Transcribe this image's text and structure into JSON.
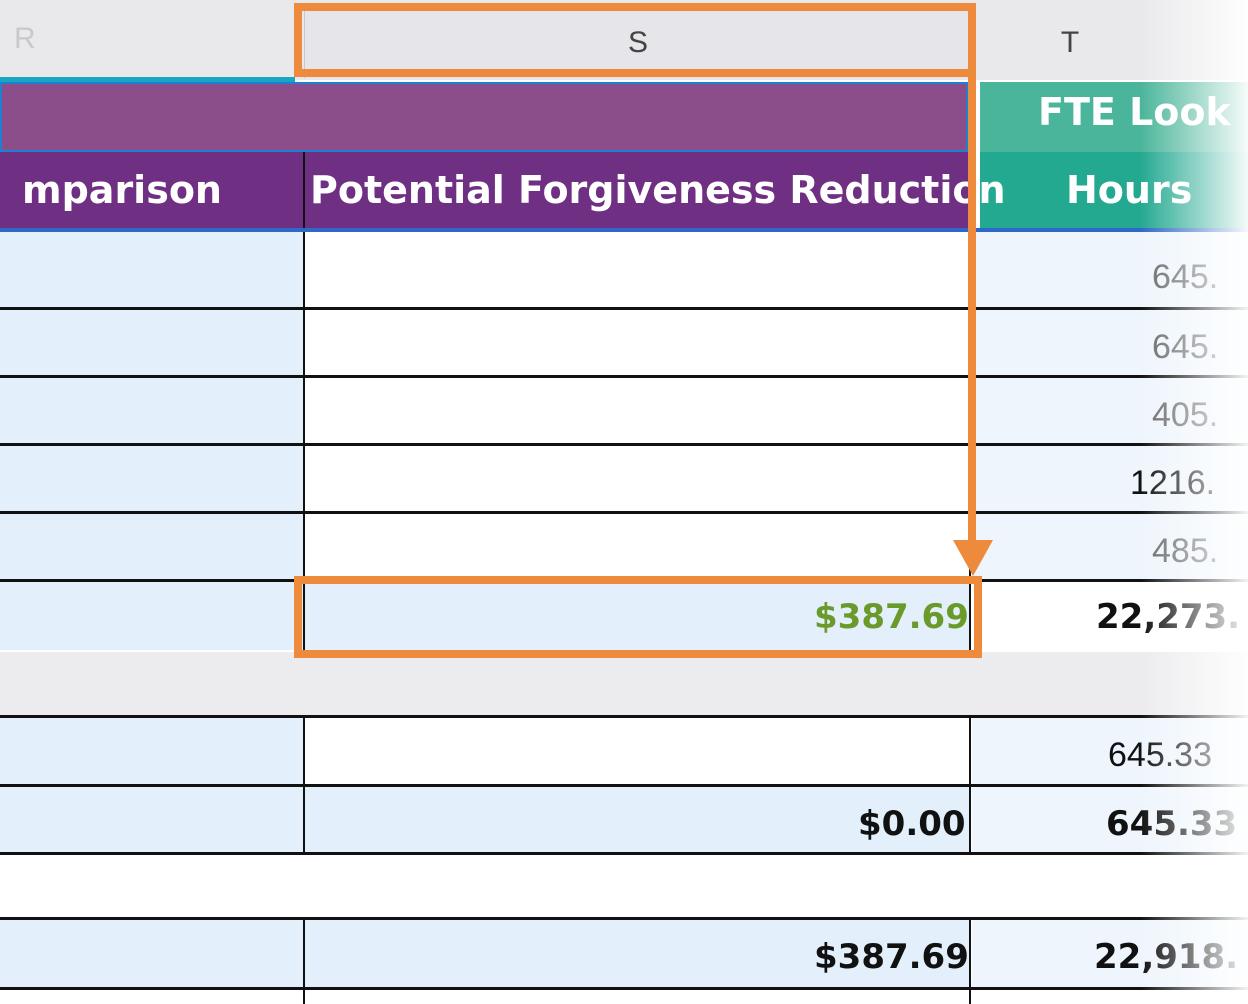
{
  "column_headers": {
    "r": "R",
    "s": "S",
    "t": "T"
  },
  "banner": {
    "right_title": "FTE Look"
  },
  "subheaders": {
    "left": "mparison",
    "middle": "Potential Forgiveness Reduction",
    "right": "Hours"
  },
  "rows": [
    {
      "middle": "",
      "right": "645."
    },
    {
      "middle": "",
      "right": "645."
    },
    {
      "middle": "",
      "right": "405."
    },
    {
      "middle": "",
      "right": "1216."
    },
    {
      "middle": "",
      "right": "485."
    },
    {
      "middle": "$387.69",
      "right": "22,273."
    },
    {
      "middle": "",
      "right": "645.33"
    },
    {
      "middle": "$0.00",
      "right": "645.33"
    },
    {
      "middle": "$387.69",
      "right": "22,918."
    }
  ],
  "colors": {
    "purple_banner": "#8b4e8a",
    "purple_header": "#6f2f82",
    "teal_banner": "#4ab59a",
    "teal_header": "#24a991",
    "highlight_orange": "#ee8a3b",
    "positive_green": "#6a9a2a"
  }
}
